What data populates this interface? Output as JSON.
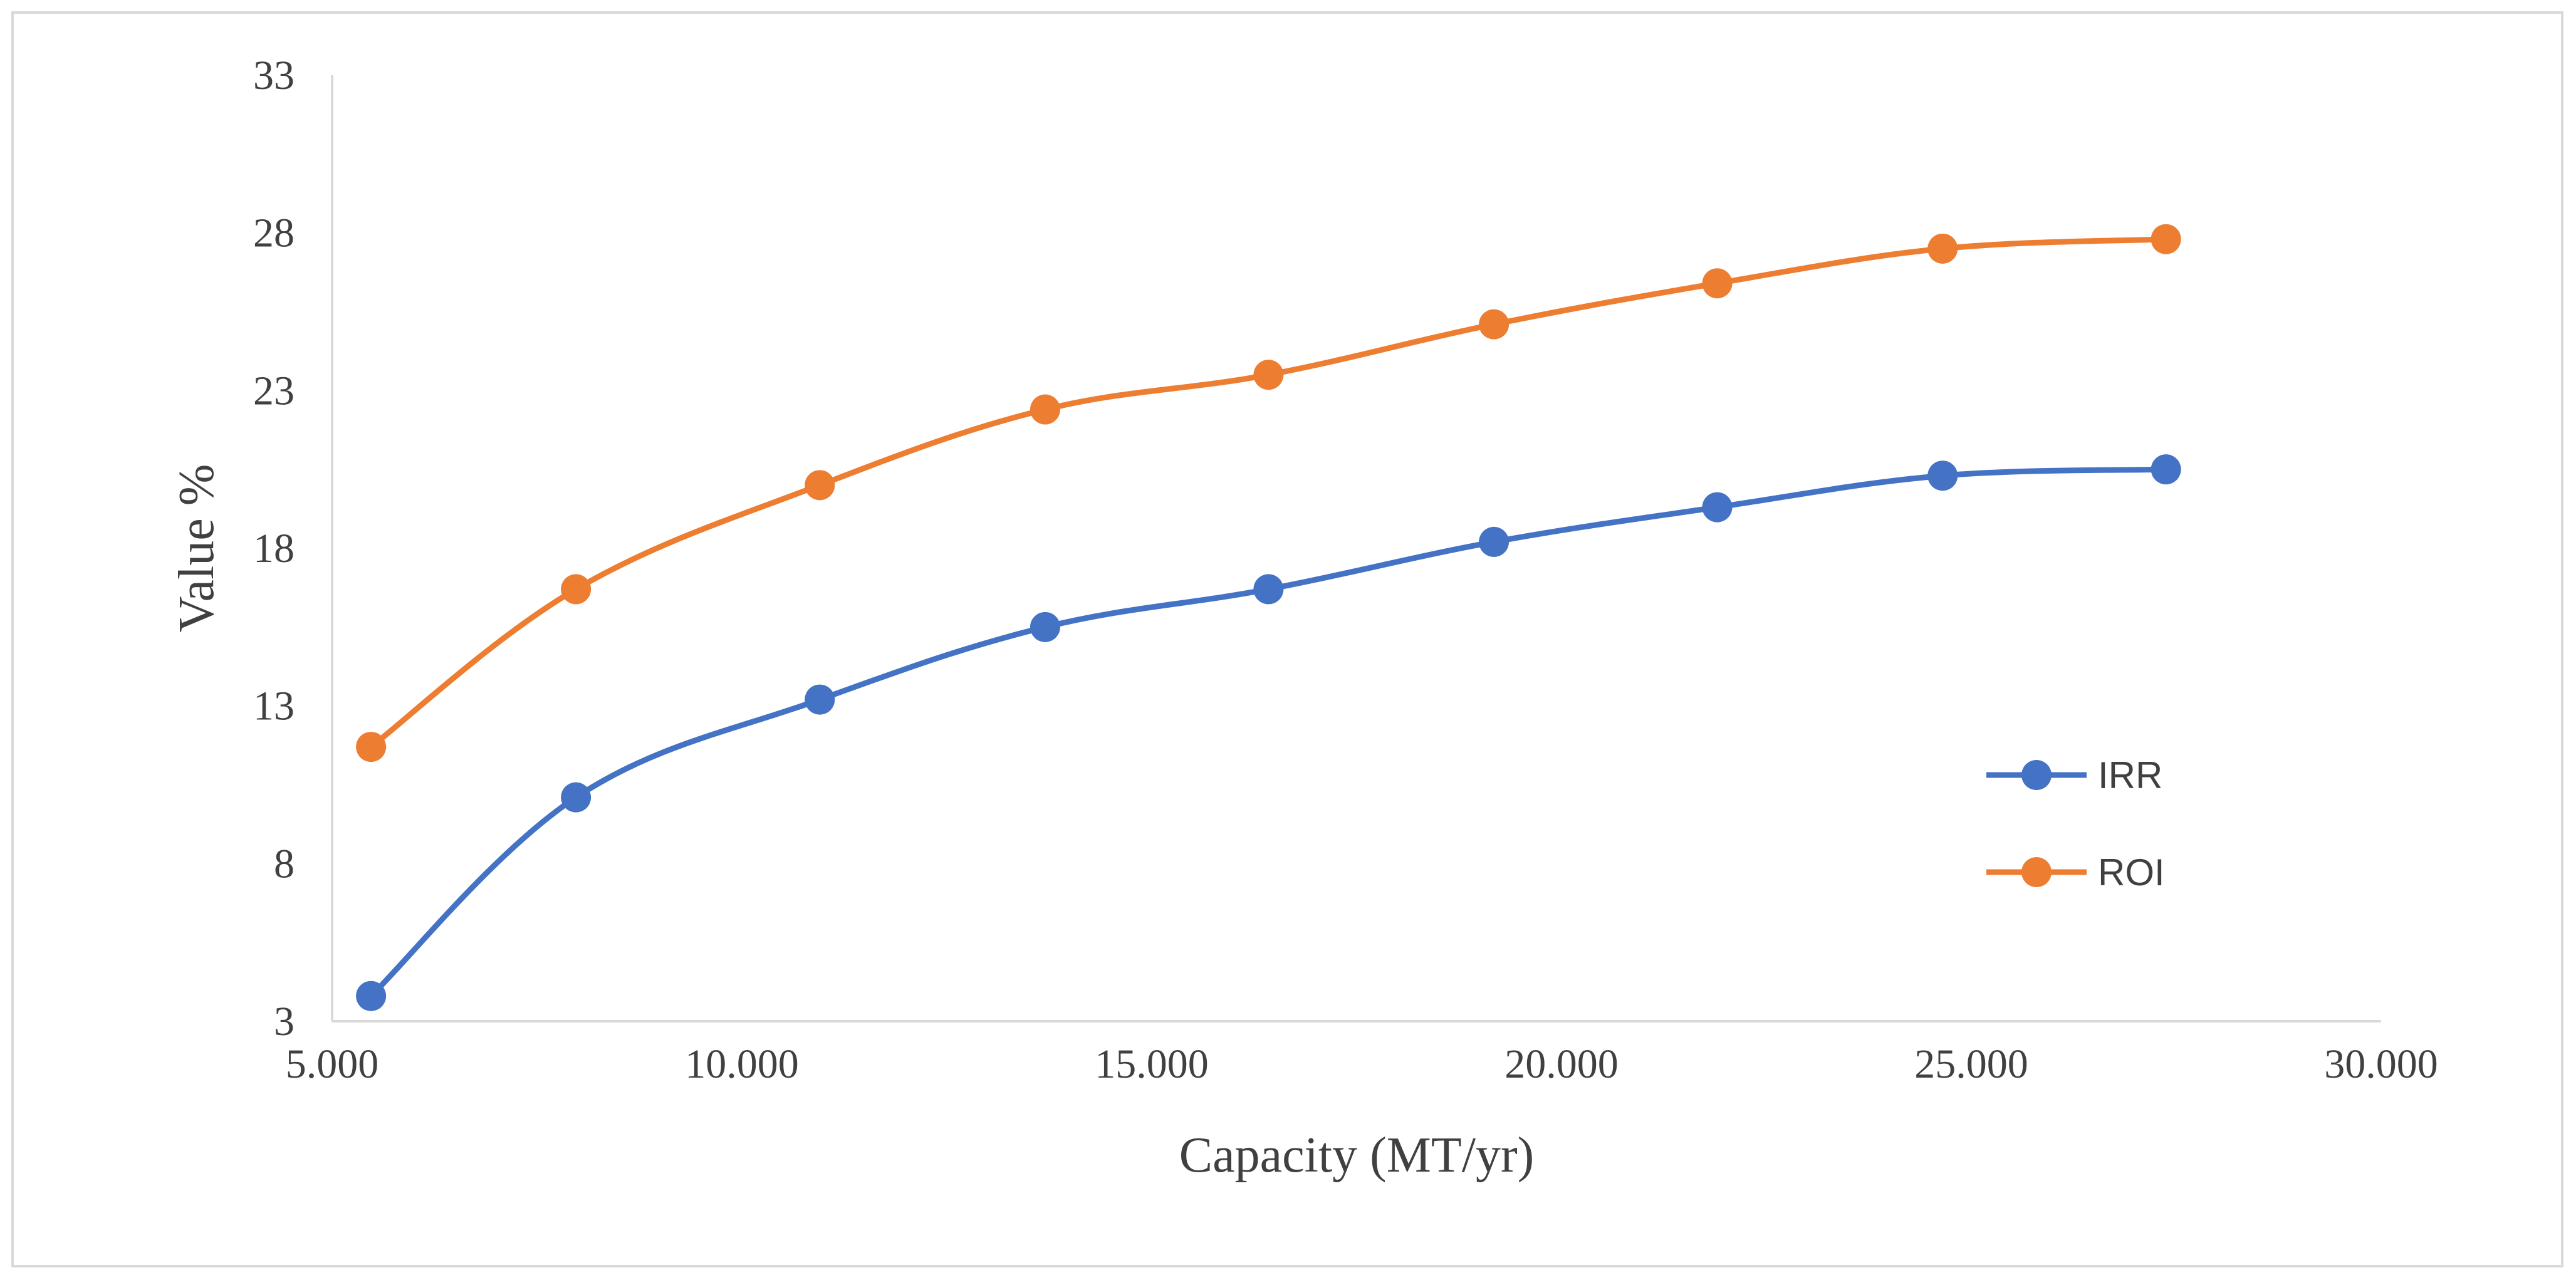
{
  "chart_data": {
    "type": "line",
    "title": "",
    "xlabel": "Capacity (MT/yr)",
    "ylabel": "Value %",
    "xlim": [
      5000,
      30000
    ],
    "ylim": [
      3,
      33
    ],
    "xticks": [
      5000,
      10000,
      15000,
      20000,
      25000,
      30000
    ],
    "xtick_labels": [
      "5.000",
      "10.000",
      "15.000",
      "20.000",
      "25.000",
      "30.000"
    ],
    "yticks": [
      3,
      8,
      13,
      18,
      23,
      28,
      33
    ],
    "ytick_labels": [
      "3",
      "8",
      "13",
      "18",
      "23",
      "28",
      "33"
    ],
    "grid": false,
    "legend_position": "right",
    "series": [
      {
        "name": "IRR",
        "color": "#4472C4",
        "x": [
          5475,
          7975,
          10950,
          13700,
          16425,
          19175,
          21900,
          24650,
          27375
        ],
        "y": [
          3.8,
          10.1,
          13.2,
          15.5,
          16.7,
          18.2,
          19.3,
          20.3,
          20.5
        ]
      },
      {
        "name": "ROI",
        "color": "#ED7D31",
        "x": [
          5475,
          7975,
          10950,
          13700,
          16425,
          19175,
          21900,
          24650,
          27375
        ],
        "y": [
          11.7,
          16.7,
          20.0,
          22.4,
          23.5,
          25.1,
          26.4,
          27.5,
          27.8
        ]
      }
    ]
  }
}
